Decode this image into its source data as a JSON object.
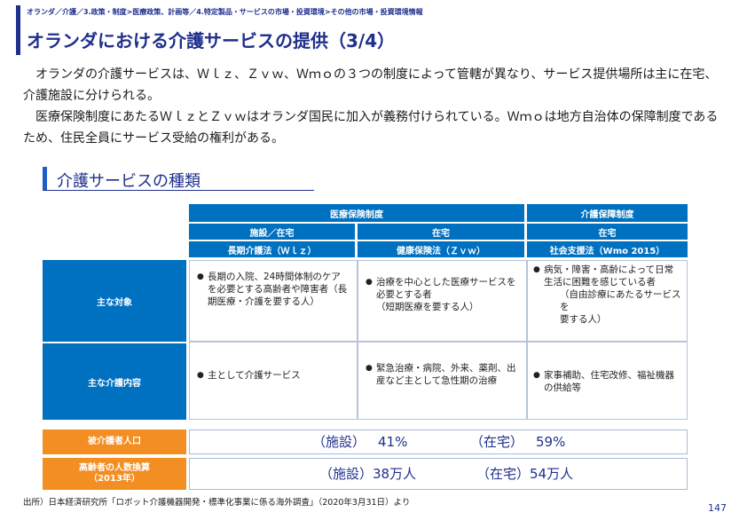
{
  "breadcrumb": "オランダ／介護／3.政策・制度>医療政策、計画等／4.特定製品・サービスの市場・投資環境>その他の市場・投資環境情報",
  "title": "オランダにおける介護サービスの提供（3/4）",
  "intro": [
    "オランダの介護サービスは、Ｗｌｚ、Ｚｖｗ、Ｗｍｏの３つの制度によって管轄が異なり、サービス提供場所は主に在宅、介護施設に分けられる。",
    "医療保険制度にあたるＷｌｚとＺｖｗはオランダ国民に加入が義務付けられている。Ｗｍｏは地方自治体の保障制度であるため、住民全員にサービス受給の権利がある。"
  ],
  "section_title": "介護サービスの種類",
  "table": {
    "group1": "医療保険制度",
    "group2": "介護保障制度",
    "col1": {
      "place": "施設／在宅",
      "law": "長期介護法（Ｗｌｚ）"
    },
    "col2": {
      "place": "在宅",
      "law": "健康保険法（Ｚｖｗ）"
    },
    "col3": {
      "place": "在宅",
      "law": "社会支援法（Wmo 2015）"
    },
    "rows": {
      "target": {
        "label": "主な対象",
        "c1": "長期の入院、24時間体制のケアを必要とする高齢者や障害者（長期医療・介護を要する人）",
        "c2": "治療を中心とした医療サービスを必要とする者",
        "c2b": "（短期医療を要する人）",
        "c3": "病気・障害・高齢によって日常生活に困難を感じている者",
        "c3b": "（自由診療にあたるサービスを",
        "c3c": "要する人）"
      },
      "content": {
        "label": "主な介護内容",
        "c1": "主として介護サービス",
        "c2": "緊急治療・病院、外来、薬剤、出産など主として急性期の治療",
        "c3": "家事補助、住宅改修、福祉機器の供給等"
      }
    }
  },
  "stats": {
    "row1": {
      "label": "被介護者人口",
      "facility_label": "（施設）",
      "facility_value": "41%",
      "home_label": "（在宅）",
      "home_value": "59%"
    },
    "row2": {
      "label": "高齢者の人数換算",
      "label_year": "（2013年）",
      "facility_label": "（施設）",
      "facility_value": "38万人",
      "home_label": "（在宅）",
      "home_value": "54万人"
    }
  },
  "source": "出所）日本経済研究所「ロボット介護機器開発・標準化事業に係る海外調査」（2020年3月31日）より",
  "page_number": "147"
}
